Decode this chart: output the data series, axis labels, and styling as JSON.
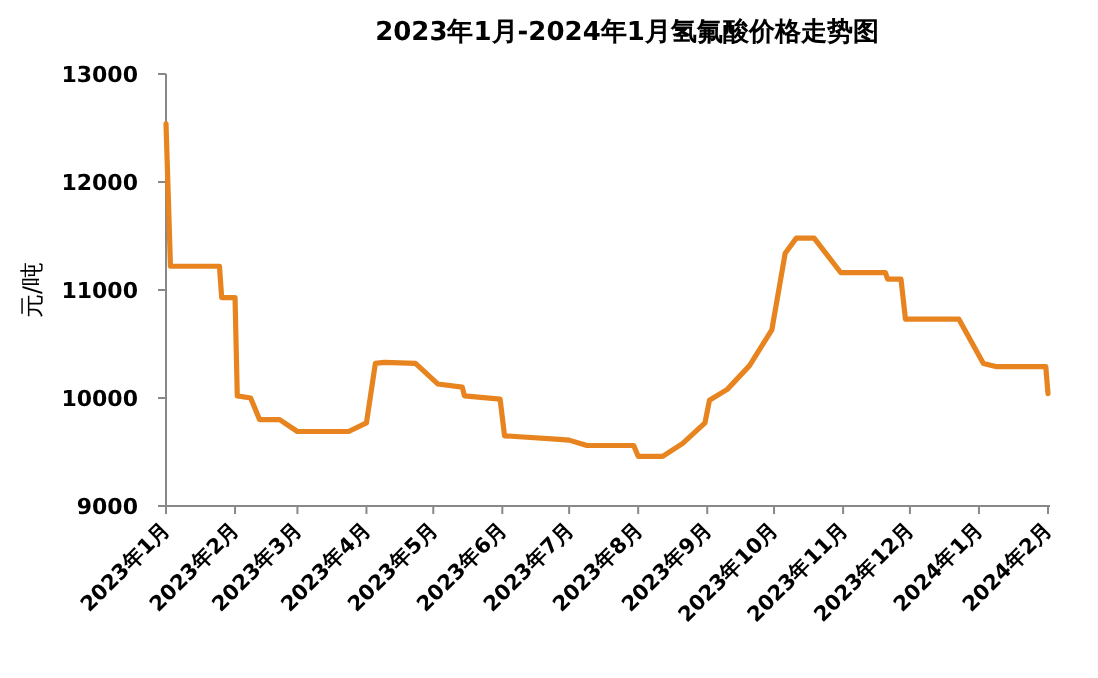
{
  "chart_data": {
    "type": "line",
    "title": "2023年1月-2024年1月氢氟酸价格走势图",
    "ylabel": "元/吨",
    "xlim": [
      "2023-01-01",
      "2024-02-01"
    ],
    "xticks": [
      {
        "value": "2023-01-01",
        "label": "2023年1月"
      },
      {
        "value": "2023-02-01",
        "label": "2023年2月"
      },
      {
        "value": "2023-03-01",
        "label": "2023年3月"
      },
      {
        "value": "2023-04-01",
        "label": "2023年4月"
      },
      {
        "value": "2023-05-01",
        "label": "2023年5月"
      },
      {
        "value": "2023-06-01",
        "label": "2023年6月"
      },
      {
        "value": "2023-07-01",
        "label": "2023年7月"
      },
      {
        "value": "2023-08-01",
        "label": "2023年8月"
      },
      {
        "value": "2023-09-01",
        "label": "2023年9月"
      },
      {
        "value": "2023-10-01",
        "label": "2023年10月"
      },
      {
        "value": "2023-11-01",
        "label": "2023年11月"
      },
      {
        "value": "2023-12-01",
        "label": "2023年12月"
      },
      {
        "value": "2024-01-01",
        "label": "2024年1月"
      },
      {
        "value": "2024-02-01",
        "label": "2024年2月"
      }
    ],
    "ylim": [
      9000,
      13000
    ],
    "yticks": [
      9000,
      10000,
      11000,
      12000,
      13000
    ],
    "series": [
      {
        "color": "#e8841f",
        "x": [
          "2023-01-01",
          "2023-01-03",
          "2023-01-25",
          "2023-01-26",
          "2023-02-01",
          "2023-02-02",
          "2023-02-08",
          "2023-02-12",
          "2023-02-21",
          "2023-03-01",
          "2023-03-24",
          "2023-04-01",
          "2023-04-05",
          "2023-04-09",
          "2023-04-23",
          "2023-05-03",
          "2023-05-14",
          "2023-05-15",
          "2023-05-31",
          "2023-06-02",
          "2023-06-25",
          "2023-07-01",
          "2023-07-09",
          "2023-07-30",
          "2023-08-01",
          "2023-08-12",
          "2023-08-21",
          "2023-08-31",
          "2023-09-02",
          "2023-09-10",
          "2023-09-20",
          "2023-09-30",
          "2023-10-06",
          "2023-10-11",
          "2023-10-19",
          "2023-10-31",
          "2023-11-20",
          "2023-11-21",
          "2023-11-27",
          "2023-11-29",
          "2023-12-23",
          "2024-01-03",
          "2024-01-09",
          "2024-01-31",
          "2024-02-01"
        ],
        "values": [
          12540,
          11220,
          11220,
          10930,
          10930,
          10020,
          10000,
          9800,
          9800,
          9690,
          9690,
          9770,
          10320,
          10330,
          10320,
          10130,
          10100,
          10020,
          9990,
          9650,
          9620,
          9610,
          9560,
          9560,
          9460,
          9460,
          9580,
          9770,
          9980,
          10080,
          10300,
          10630,
          11340,
          11480,
          11480,
          11160,
          11160,
          11100,
          11100,
          10730,
          10730,
          10320,
          10290,
          10290,
          10040
        ]
      }
    ]
  }
}
